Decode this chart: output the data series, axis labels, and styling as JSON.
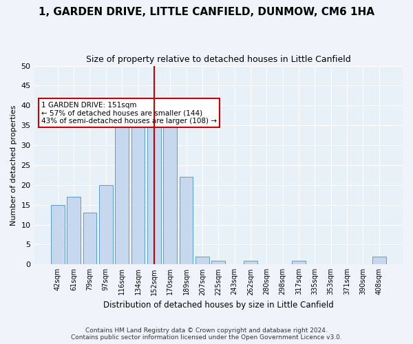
{
  "title": "1, GARDEN DRIVE, LITTLE CANFIELD, DUNMOW, CM6 1HA",
  "subtitle": "Size of property relative to detached houses in Little Canfield",
  "xlabel": "Distribution of detached houses by size in Little Canfield",
  "ylabel": "Number of detached properties",
  "categories": [
    "42sqm",
    "61sqm",
    "79sqm",
    "97sqm",
    "116sqm",
    "134sqm",
    "152sqm",
    "170sqm",
    "189sqm",
    "207sqm",
    "225sqm",
    "243sqm",
    "262sqm",
    "280sqm",
    "298sqm",
    "317sqm",
    "335sqm",
    "353sqm",
    "371sqm",
    "390sqm",
    "408sqm"
  ],
  "values": [
    15,
    17,
    13,
    20,
    41,
    39,
    42,
    37,
    22,
    2,
    1,
    0,
    1,
    0,
    0,
    1,
    0,
    0,
    0,
    0,
    2
  ],
  "bar_color": "#c5d8ed",
  "bar_edge_color": "#5b9bd5",
  "highlight_index": 6,
  "highlight_line_color": "#cc0000",
  "annotation_text": "1 GARDEN DRIVE: 151sqm\n← 57% of detached houses are smaller (144)\n43% of semi-detached houses are larger (108) →",
  "annotation_box_color": "#cc0000",
  "footer_line1": "Contains HM Land Registry data © Crown copyright and database right 2024.",
  "footer_line2": "Contains public sector information licensed under the Open Government Licence v3.0.",
  "ylim": [
    0,
    50
  ],
  "background_color": "#f0f4fa",
  "plot_bg_color": "#e8f0f8"
}
